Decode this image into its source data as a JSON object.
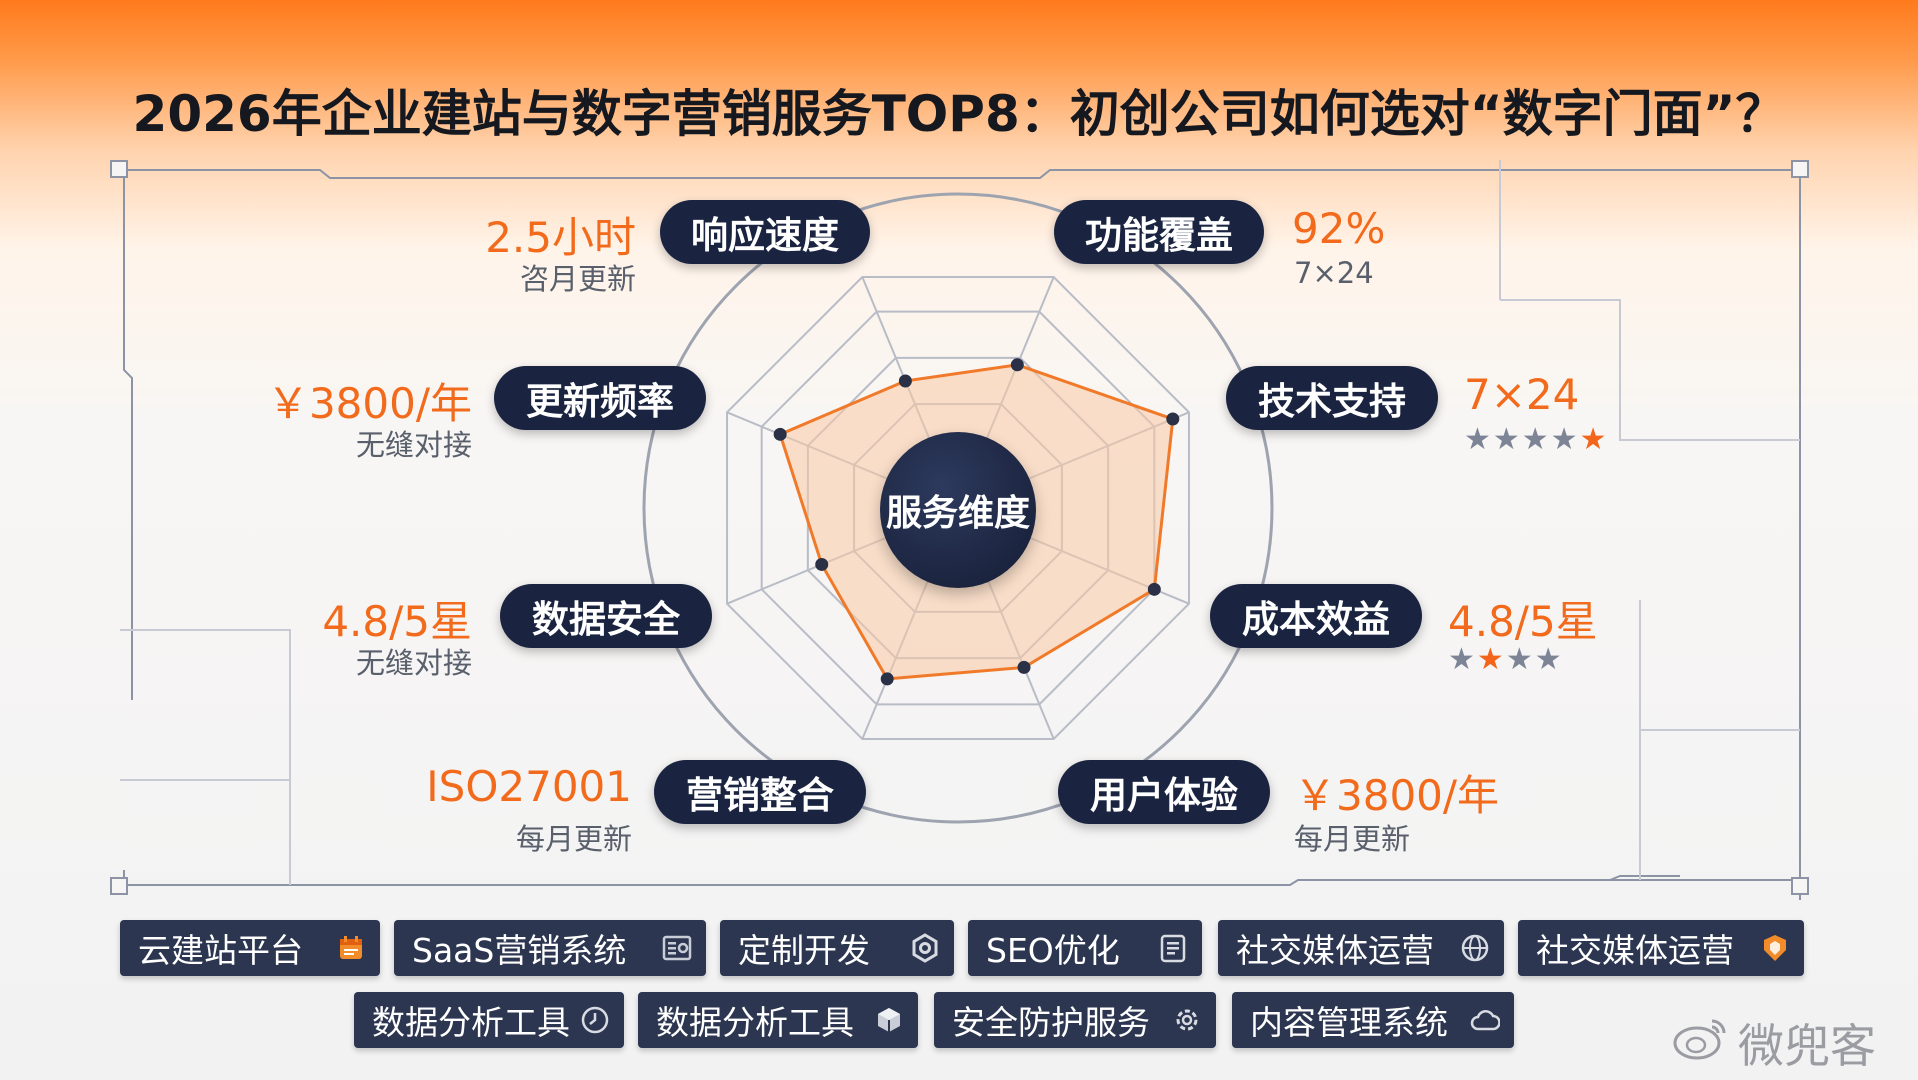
{
  "title": "2026年企业建站与数字营销服务TOP8：初创公司如何选对“数字门面”？",
  "center": "服务维度",
  "dimensions": [
    {
      "label": "响应速度",
      "value": "2.5小时",
      "sub": "咨月更新"
    },
    {
      "label": "功能覆盖",
      "value": "92%",
      "sub": "7×24"
    },
    {
      "label": "技术支持",
      "value": "7×24",
      "sub": ""
    },
    {
      "label": "成本效益",
      "value": "4.8/5星",
      "sub": ""
    },
    {
      "label": "用户体验",
      "value": "￥3800/年",
      "sub": "每月更新"
    },
    {
      "label": "营销整合",
      "value": "ISO27001",
      "sub": "每月更新"
    },
    {
      "label": "数据安全",
      "value": "4.8/5星",
      "sub": "无缝对接"
    },
    {
      "label": "更新频率",
      "value": "￥3800/年",
      "sub": "无缝对接"
    }
  ],
  "ratings": {
    "tech_support": {
      "stars": "★★★★",
      "accent": "★"
    },
    "cost": {
      "star1": "★",
      "accent": "★",
      "rest": "★★"
    }
  },
  "chart_data": {
    "type": "radar",
    "axes": [
      "响应速度",
      "功能覆盖",
      "技术支持",
      "成本效益",
      "用户体验",
      "营销整合",
      "数据安全",
      "更新频率"
    ],
    "values": [
      0.55,
      0.62,
      0.93,
      0.85,
      0.69,
      0.74,
      0.59,
      0.77
    ],
    "max": 1,
    "colors": {
      "series": "#f07a2a",
      "fill": "#f9c9a4",
      "grid": "#9ea3b0"
    }
  },
  "tags_row1": [
    {
      "label": "云建站平台",
      "icon": "calendar-icon"
    },
    {
      "label": "SaaS营销系统",
      "icon": "dashboard-icon"
    },
    {
      "label": "定制开发",
      "icon": "gear-hex-icon"
    },
    {
      "label": "SEO优化",
      "icon": "document-icon"
    },
    {
      "label": "社交媒体运营",
      "icon": "globe-icon"
    },
    {
      "label": "社交媒体运营",
      "icon": "shield-icon"
    }
  ],
  "tags_row2": [
    {
      "label": "数据分析工具",
      "icon": "clock-icon"
    },
    {
      "label": "数据分析工具",
      "icon": "cube-icon"
    },
    {
      "label": "安全防护服务",
      "icon": "cog-icon"
    },
    {
      "label": "内容管理系统",
      "icon": "cloud-icon"
    }
  ],
  "watermark": "微兜客"
}
